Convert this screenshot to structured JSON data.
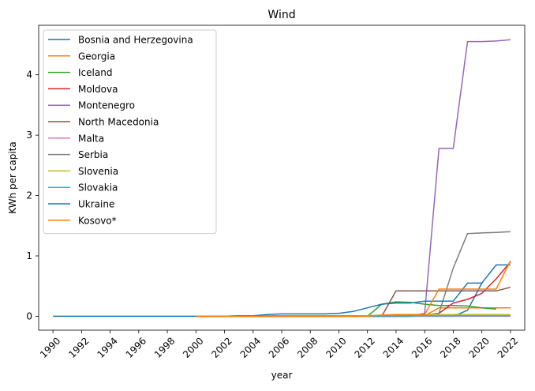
{
  "chart_data": {
    "type": "line",
    "title": "Wind",
    "xlabel": "year",
    "ylabel": "KWh per capita",
    "xlim": [
      1989,
      2023
    ],
    "ylim": [
      -0.23,
      4.82
    ],
    "xticks": [
      1990,
      1992,
      1994,
      1996,
      1998,
      2000,
      2002,
      2004,
      2006,
      2008,
      2010,
      2012,
      2014,
      2016,
      2018,
      2020,
      2022
    ],
    "yticks": [
      0,
      1,
      2,
      3,
      4
    ],
    "grid": false,
    "legend_position": "top-left",
    "series": [
      {
        "name": "Bosnia and Herzegovina",
        "color": "#1f77b4",
        "x": [
          1990,
          1991,
          1992,
          1993,
          1994,
          1995,
          1996,
          1997,
          1998,
          1999,
          2000,
          2001,
          2002,
          2003,
          2004,
          2005,
          2006,
          2007,
          2008,
          2009,
          2010,
          2011,
          2012,
          2013,
          2014,
          2015,
          2016,
          2017,
          2018,
          2019,
          2020,
          2021,
          2022
        ],
        "y": [
          0,
          0,
          0,
          0,
          0,
          0,
          0,
          0,
          0,
          0,
          0,
          0,
          0,
          0,
          0,
          0,
          0,
          0,
          0,
          0,
          0,
          0,
          0,
          0,
          0,
          0,
          0,
          0,
          0,
          0.1,
          0.55,
          0.85,
          0.85
        ]
      },
      {
        "name": "Georgia",
        "color": "#ff7f0e",
        "x": [
          2000,
          2001,
          2002,
          2003,
          2004,
          2005,
          2006,
          2007,
          2008,
          2009,
          2010,
          2011,
          2012,
          2013,
          2014,
          2015,
          2016,
          2017,
          2018,
          2019,
          2020,
          2021,
          2022
        ],
        "y": [
          0,
          0,
          0,
          0,
          0,
          0,
          0,
          0,
          0,
          0,
          0,
          0,
          0,
          0,
          0,
          0,
          0.01,
          0.14,
          0.14,
          0.14,
          0.14,
          0.14,
          0.14
        ]
      },
      {
        "name": "Iceland",
        "color": "#2ca02c",
        "x": [
          2000,
          2001,
          2002,
          2003,
          2004,
          2005,
          2006,
          2007,
          2008,
          2009,
          2010,
          2011,
          2012,
          2013,
          2014,
          2015,
          2016,
          2017,
          2018,
          2019,
          2020,
          2021
        ],
        "y": [
          0,
          0,
          0,
          0,
          0,
          0,
          0,
          0,
          0,
          0,
          0,
          0,
          0,
          0.2,
          0.24,
          0.23,
          0.2,
          0.18,
          0.18,
          0.17,
          0.14,
          0.12
        ]
      },
      {
        "name": "Moldova",
        "color": "#d62728",
        "x": [
          2000,
          2001,
          2002,
          2003,
          2004,
          2005,
          2006,
          2007,
          2008,
          2009,
          2010,
          2011,
          2012,
          2013,
          2014,
          2015,
          2016,
          2017,
          2018,
          2019,
          2020,
          2021,
          2022
        ],
        "y": [
          0,
          0,
          0,
          0,
          0,
          0,
          0,
          0,
          0,
          0,
          0,
          0,
          0,
          0,
          0,
          0.01,
          0.02,
          0.05,
          0.22,
          0.28,
          0.38,
          0.62,
          0.9
        ]
      },
      {
        "name": "Montenegro",
        "color": "#9467bd",
        "x": [
          2000,
          2001,
          2002,
          2003,
          2004,
          2005,
          2006,
          2007,
          2008,
          2009,
          2010,
          2011,
          2012,
          2013,
          2014,
          2015,
          2016,
          2017,
          2018,
          2019,
          2020,
          2021,
          2022
        ],
        "y": [
          0,
          0,
          0,
          0,
          0,
          0,
          0,
          0,
          0,
          0,
          0,
          0,
          0,
          0,
          0,
          0,
          0.05,
          2.78,
          2.78,
          4.55,
          4.55,
          4.56,
          4.58
        ]
      },
      {
        "name": "North Macedonia",
        "color": "#8c564b",
        "x": [
          2000,
          2001,
          2002,
          2003,
          2004,
          2005,
          2006,
          2007,
          2008,
          2009,
          2010,
          2011,
          2012,
          2013,
          2014,
          2015,
          2016,
          2017,
          2018,
          2019,
          2020,
          2021,
          2022
        ],
        "y": [
          0,
          0,
          0,
          0,
          0,
          0,
          0,
          0,
          0,
          0,
          0,
          0,
          0,
          0,
          0.42,
          0.42,
          0.42,
          0.42,
          0.42,
          0.42,
          0.42,
          0.42,
          0.48
        ]
      },
      {
        "name": "Malta",
        "color": "#e377c2",
        "x": [
          2000,
          2001,
          2002,
          2003,
          2004,
          2005,
          2006,
          2007,
          2008,
          2009,
          2010,
          2011,
          2012,
          2013,
          2014,
          2015,
          2016,
          2017,
          2018,
          2019,
          2020,
          2021,
          2022
        ],
        "y": [
          0,
          0,
          0,
          0,
          0,
          0,
          0,
          0,
          0,
          0,
          0,
          0,
          0,
          0,
          0,
          0,
          0,
          0,
          0,
          0,
          0,
          0,
          0
        ]
      },
      {
        "name": "Serbia",
        "color": "#7f7f7f",
        "x": [
          2000,
          2001,
          2002,
          2003,
          2004,
          2005,
          2006,
          2007,
          2008,
          2009,
          2010,
          2011,
          2012,
          2013,
          2014,
          2015,
          2016,
          2017,
          2018,
          2019,
          2020,
          2021,
          2022
        ],
        "y": [
          0,
          0,
          0,
          0,
          0,
          0,
          0,
          0,
          0,
          0,
          0,
          0,
          0,
          0,
          0,
          0,
          0.02,
          0.05,
          0.8,
          1.37,
          1.38,
          1.39,
          1.4
        ]
      },
      {
        "name": "Slovenia",
        "color": "#bcbd22",
        "x": [
          2000,
          2001,
          2002,
          2003,
          2004,
          2005,
          2006,
          2007,
          2008,
          2009,
          2010,
          2011,
          2012,
          2013,
          2014,
          2015,
          2016,
          2017,
          2018,
          2019,
          2020,
          2021,
          2022
        ],
        "y": [
          0,
          0,
          0,
          0,
          0,
          0,
          0,
          0,
          0,
          0,
          0,
          0,
          0,
          0.02,
          0.02,
          0.02,
          0.03,
          0.03,
          0.03,
          0.03,
          0.03,
          0.03,
          0.03
        ]
      },
      {
        "name": "Slovakia",
        "color": "#17becf",
        "x": [
          2000,
          2001,
          2002,
          2003,
          2004,
          2005,
          2006,
          2007,
          2008,
          2009,
          2010,
          2011,
          2012,
          2013,
          2014,
          2015,
          2016,
          2017,
          2018,
          2019,
          2020,
          2021,
          2022
        ],
        "y": [
          0,
          0,
          0,
          0.01,
          0.01,
          0.01,
          0.01,
          0.01,
          0.01,
          0.01,
          0.01,
          0.01,
          0.01,
          0.01,
          0.01,
          0.01,
          0.01,
          0.01,
          0.01,
          0.01,
          0.01,
          0.01,
          0.01
        ]
      },
      {
        "name": "Ukraine",
        "color": "#1f77b4",
        "x": [
          2000,
          2001,
          2002,
          2003,
          2004,
          2005,
          2006,
          2007,
          2008,
          2009,
          2010,
          2011,
          2012,
          2013,
          2014,
          2015,
          2016,
          2017,
          2018,
          2019,
          2020
        ],
        "y": [
          0,
          0,
          0,
          0.01,
          0.01,
          0.03,
          0.04,
          0.04,
          0.04,
          0.04,
          0.05,
          0.08,
          0.14,
          0.2,
          0.22,
          0.22,
          0.25,
          0.25,
          0.25,
          0.55,
          0.55
        ]
      },
      {
        "name": "Kosovo*",
        "color": "#ff7f0e",
        "x": [
          2000,
          2001,
          2002,
          2003,
          2004,
          2005,
          2006,
          2007,
          2008,
          2009,
          2010,
          2011,
          2012,
          2013,
          2014,
          2015,
          2016,
          2017,
          2018,
          2019,
          2020,
          2021,
          2022
        ],
        "y": [
          0,
          0,
          0,
          0,
          0,
          0,
          0,
          0,
          0,
          0,
          0,
          0,
          0.01,
          0.02,
          0.03,
          0.03,
          0.03,
          0.45,
          0.45,
          0.45,
          0.45,
          0.45,
          0.92
        ]
      }
    ]
  }
}
